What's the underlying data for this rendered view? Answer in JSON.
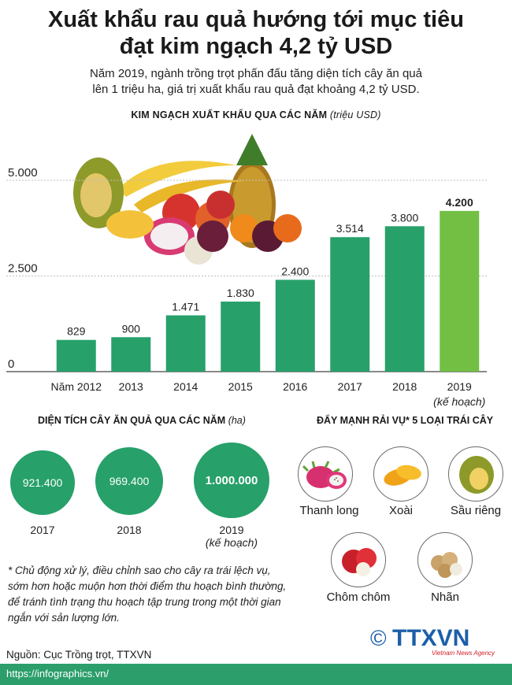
{
  "title_line1": "Xuất khẩu rau quả hướng tới mục tiêu",
  "title_line2": "đạt kim ngạch 4,2 tỷ USD",
  "intro_line1": "Năm 2019, ngành trồng trọt phấn đấu tăng diện tích cây ăn quả",
  "intro_line2": "lên 1 triệu ha, giá trị xuất khẩu rau quả đạt khoảng 4,2 tỷ USD.",
  "chart_title": "KIM NGẠCH XUẤT KHẨU QUA CÁC NĂM",
  "chart_unit": "(triệu USD)",
  "chart_data": {
    "type": "bar",
    "categories": [
      "Năm 2012",
      "2013",
      "2014",
      "2015",
      "2016",
      "2017",
      "2018",
      "2019"
    ],
    "category_notes": [
      "",
      "",
      "",
      "",
      "",
      "",
      "",
      "(kế hoạch)"
    ],
    "values": [
      829,
      900,
      1471,
      1830,
      2400,
      3514,
      3800,
      4200
    ],
    "value_labels": [
      "829",
      "900",
      "1.471",
      "1.830",
      "2.400",
      "3.514",
      "3.800",
      "4.200"
    ],
    "yticks": [
      0,
      2500,
      5000
    ],
    "ytick_labels": [
      "0",
      "2.500",
      "5.000"
    ],
    "ylim": [
      0,
      5000
    ],
    "bar_color": "#27a06a",
    "highlight_color": "#72bf44",
    "highlight_index": 7
  },
  "area": {
    "title": "DIỆN TÍCH CÂY ĂN QUẢ QUA CÁC NĂM",
    "unit": "(ha)",
    "items": [
      {
        "value": "921.400",
        "year": "2017",
        "note": ""
      },
      {
        "value": "969.400",
        "year": "2018",
        "note": ""
      },
      {
        "value": "1.000.000",
        "year": "2019",
        "note": "(kế hoạch)"
      }
    ]
  },
  "fruits": {
    "title": "ĐẨY MẠNH RẢI VỤ* 5 LOẠI TRÁI CÂY",
    "items": [
      {
        "name": "Thanh long",
        "icon": "dragon-fruit-icon"
      },
      {
        "name": "Xoài",
        "icon": "mango-icon"
      },
      {
        "name": "Sầu riêng",
        "icon": "durian-icon"
      },
      {
        "name": "Chôm chôm",
        "icon": "rambutan-icon"
      },
      {
        "name": "Nhãn",
        "icon": "longan-icon"
      }
    ]
  },
  "note_lines": [
    "* Chủ động xử lý, điều chỉnh sao cho cây ra trái lệch vụ,",
    "sớm hơn hoặc muộn hơn thời điểm thu hoạch bình thường,",
    "để tránh tình trạng thu hoạch tập trung trong một thời gian",
    "ngắn với sản lượng lớn."
  ],
  "source": "Nguồn: Cục Trồng trọt, TTXVN",
  "footer_url": "https://infographics.vn/",
  "logo_text": "TTXVN",
  "logo_sub": "Vietnam News Agency",
  "logo_symbol": "©"
}
